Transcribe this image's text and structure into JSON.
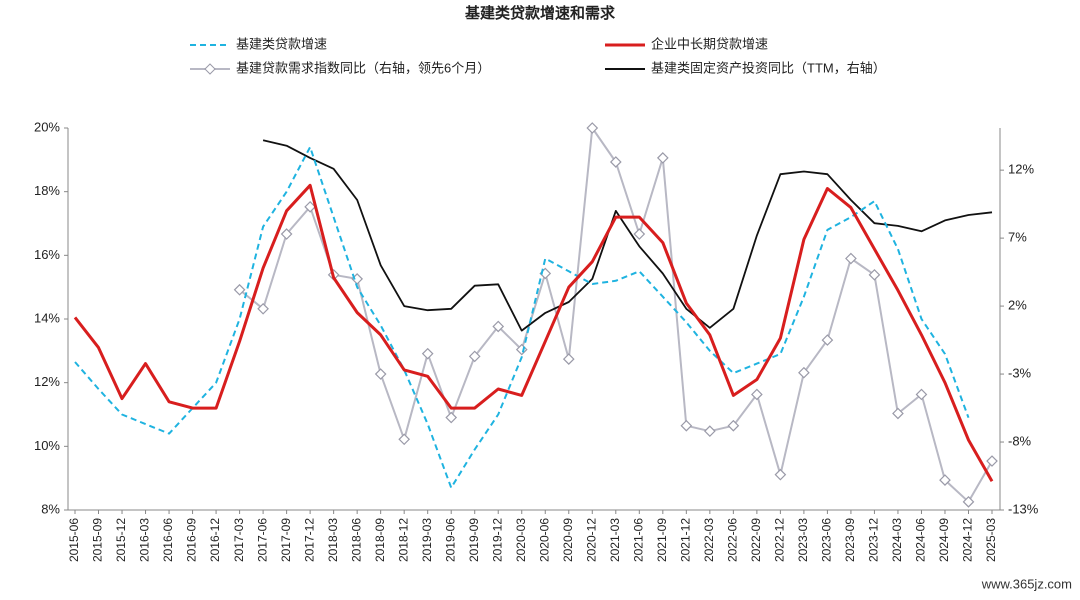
{
  "chart_data": {
    "type": "line",
    "title": "基建类贷款增速和需求",
    "watermark": "www.365jz.com",
    "categories": [
      "2015-06",
      "2015-09",
      "2015-12",
      "2016-03",
      "2016-06",
      "2016-09",
      "2016-12",
      "2017-03",
      "2017-06",
      "2017-09",
      "2017-12",
      "2018-03",
      "2018-06",
      "2018-09",
      "2018-12",
      "2019-03",
      "2019-06",
      "2019-09",
      "2019-12",
      "2020-03",
      "2020-06",
      "2020-09",
      "2020-12",
      "2021-03",
      "2021-06",
      "2021-09",
      "2021-12",
      "2022-03",
      "2022-06",
      "2022-09",
      "2022-12",
      "2023-03",
      "2023-06",
      "2023-09",
      "2023-12",
      "2024-03",
      "2024-06",
      "2024-09",
      "2024-12",
      "2025-03"
    ],
    "ylim": [
      8,
      20
    ],
    "yticks": [
      {
        "value": 8,
        "label": "8%"
      },
      {
        "value": 10,
        "label": "10%"
      },
      {
        "value": 12,
        "label": "12%"
      },
      {
        "value": 14,
        "label": "14%"
      },
      {
        "value": 16,
        "label": "16%"
      },
      {
        "value": 18,
        "label": "18%"
      },
      {
        "value": 20,
        "label": "20%"
      }
    ],
    "y2lim": [
      -13,
      15.1
    ],
    "y2ticks": [
      {
        "value": -13,
        "label": "-13%"
      },
      {
        "value": -8,
        "label": "-8%"
      },
      {
        "value": -3,
        "label": "-3%"
      },
      {
        "value": 2,
        "label": "2%"
      },
      {
        "value": 7,
        "label": "7%"
      },
      {
        "value": 12,
        "label": "12%"
      }
    ],
    "series": [
      {
        "name": "基建类贷款增速",
        "color": "#1fb3e0",
        "dash": true,
        "values": [
          12.65,
          11.8,
          11.0,
          10.7,
          10.4,
          11.2,
          12.0,
          14.0,
          16.9,
          18.0,
          19.4,
          17.2,
          15.0,
          13.8,
          12.4,
          10.7,
          8.7,
          9.9,
          11.0,
          12.8,
          15.9,
          15.5,
          15.1,
          15.2,
          15.5,
          14.7,
          13.9,
          13.0,
          12.3,
          12.6,
          12.9,
          14.7,
          16.8,
          17.2,
          17.7,
          16.2,
          14.0,
          12.9,
          10.9,
          null
        ]
      },
      {
        "name": "企业中长期贷款增速",
        "color": "#d81e1e",
        "values": [
          14.05,
          13.1,
          11.5,
          12.6,
          11.4,
          11.2,
          11.2,
          13.3,
          15.6,
          17.4,
          18.2,
          15.3,
          14.2,
          13.5,
          12.4,
          12.2,
          11.2,
          11.2,
          11.8,
          11.6,
          13.3,
          15.0,
          15.8,
          17.2,
          17.2,
          16.4,
          14.5,
          13.5,
          11.6,
          12.1,
          13.4,
          16.5,
          18.1,
          17.5,
          16.2,
          14.9,
          13.5,
          12.0,
          10.2,
          8.9
        ]
      },
      {
        "name": "基建贷款需求指数同比（右轴，领先6个月）",
        "color": "#b8b8c4",
        "axis": "y2",
        "marker": "diamond",
        "values": [
          null,
          null,
          null,
          null,
          null,
          null,
          null,
          3.2,
          1.8,
          7.3,
          9.3,
          4.3,
          4.0,
          -3.0,
          -7.8,
          -1.5,
          -6.2,
          -1.7,
          0.5,
          -1.2,
          4.4,
          -1.9,
          15.1,
          12.6,
          7.3,
          12.9,
          -6.8,
          -7.2,
          -6.8,
          -4.5,
          -10.4,
          -2.9,
          -0.5,
          5.5,
          4.3,
          -5.9,
          -4.5,
          -10.8,
          -12.4,
          -9.4
        ]
      },
      {
        "name": "基建类固定资产投资同比（TTM，右轴）",
        "color": "#111111",
        "axis": "y2",
        "values": [
          null,
          null,
          null,
          null,
          null,
          null,
          null,
          null,
          14.2,
          13.8,
          12.9,
          12.1,
          9.8,
          5.0,
          2.0,
          1.7,
          1.8,
          3.5,
          3.6,
          0.2,
          1.5,
          2.3,
          4.0,
          9.0,
          6.4,
          4.4,
          1.8,
          0.4,
          1.8,
          7.2,
          11.7,
          11.9,
          11.7,
          9.8,
          8.1,
          7.9,
          7.5,
          8.3,
          8.7,
          8.9
        ]
      }
    ]
  }
}
